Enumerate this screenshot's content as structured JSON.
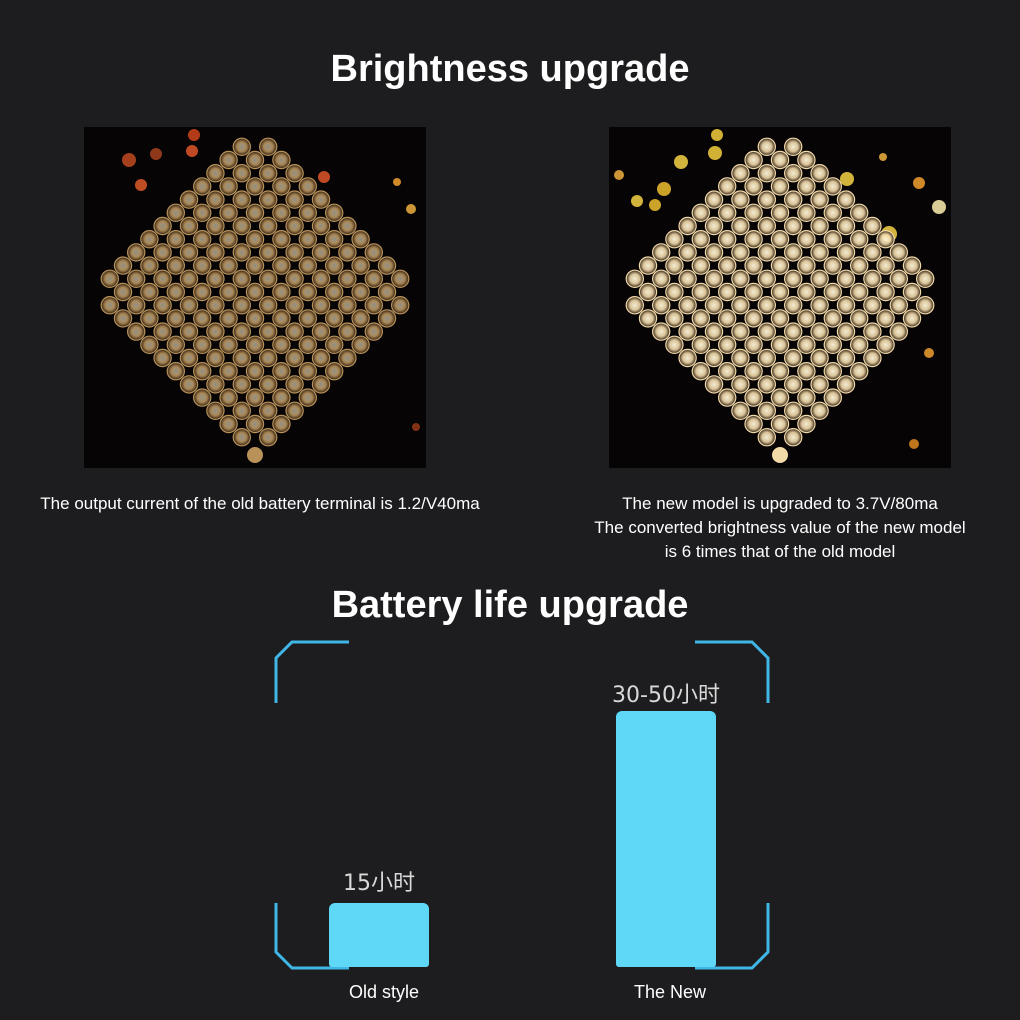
{
  "brightness": {
    "title": "Brightness upgrade",
    "old_caption": "The output current of the old battery terminal is 1.2/V40ma",
    "new_caption": [
      "The new model is upgraded to 3.7V/80ma",
      "The converted brightness value of the new model",
      "is 6 times that of the old model"
    ]
  },
  "battery": {
    "title": "Battery life upgrade",
    "bars": [
      {
        "label": "Old style",
        "value_label": "15小时",
        "hours": 15
      },
      {
        "label": "The New",
        "value_label": "30-50小时",
        "hours": 50
      }
    ]
  },
  "colors": {
    "background": "#1d1d1f",
    "bar": "#5fd8f7",
    "bracket": "#3fb6e6",
    "old_led": "#b9925a",
    "new_led": "#f2d9a8"
  }
}
